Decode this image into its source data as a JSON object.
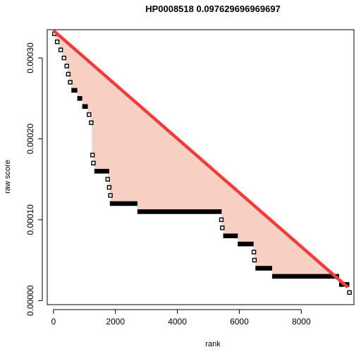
{
  "chart_data": {
    "type": "scatter",
    "title": "HP0008518 0.097629696969697",
    "xlabel": "rank",
    "ylabel": "raw score",
    "xlim": [
      -200,
      9700
    ],
    "ylim": [
      -5e-06,
      0.000335
    ],
    "x_ticks": [
      0,
      2000,
      4000,
      6000,
      8000
    ],
    "x_tick_labels": [
      "0",
      "2000",
      "4000",
      "6000",
      "8000"
    ],
    "y_ticks": [
      0.0,
      0.0001,
      0.0002,
      0.0003
    ],
    "y_tick_labels": [
      "0.00000",
      "0.00010",
      "0.00020",
      "0.00030"
    ],
    "grid": false,
    "colors": {
      "reference_line": "#f03c3c",
      "fill": "#f7cfc3",
      "points": "#000000"
    },
    "reference_line": {
      "x": [
        0,
        9500
      ],
      "y": [
        0.000334,
        1.65e-05
      ]
    },
    "steps": [
      {
        "x0": 0,
        "x1": 60,
        "y": 0.00033
      },
      {
        "x0": 60,
        "x1": 180,
        "y": 0.00032
      },
      {
        "x0": 180,
        "x1": 290,
        "y": 0.00031
      },
      {
        "x0": 290,
        "x1": 390,
        "y": 0.0003
      },
      {
        "x0": 390,
        "x1": 470,
        "y": 0.00029
      },
      {
        "x0": 440,
        "x1": 520,
        "y": 0.00028
      },
      {
        "x0": 500,
        "x1": 580,
        "y": 0.00027
      },
      {
        "x0": 580,
        "x1": 770,
        "y": 0.00026
      },
      {
        "x0": 770,
        "x1": 930,
        "y": 0.00025
      },
      {
        "x0": 930,
        "x1": 1110,
        "y": 0.00024
      },
      {
        "x0": 1110,
        "x1": 1190,
        "y": 0.00023
      },
      {
        "x0": 1200,
        "x1": 1240,
        "y": 0.00022
      },
      {
        "x0": 1240,
        "x1": 1280,
        "y": 0.00018
      },
      {
        "x0": 1260,
        "x1": 1320,
        "y": 0.00017
      },
      {
        "x0": 1320,
        "x1": 1800,
        "y": 0.00016
      },
      {
        "x0": 1720,
        "x1": 1780,
        "y": 0.00015
      },
      {
        "x0": 1780,
        "x1": 1820,
        "y": 0.00014
      },
      {
        "x0": 1820,
        "x1": 1860,
        "y": 0.00013
      },
      {
        "x0": 1820,
        "x1": 2710,
        "y": 0.00012
      },
      {
        "x0": 2710,
        "x1": 5430,
        "y": 0.00011
      },
      {
        "x0": 5400,
        "x1": 5440,
        "y": 0.0001
      },
      {
        "x0": 5420,
        "x1": 5480,
        "y": 9e-05
      },
      {
        "x0": 5480,
        "x1": 5950,
        "y": 8e-05
      },
      {
        "x0": 5950,
        "x1": 6460,
        "y": 7e-05
      },
      {
        "x0": 6440,
        "x1": 6500,
        "y": 6e-05
      },
      {
        "x0": 6460,
        "x1": 6520,
        "y": 5e-05
      },
      {
        "x0": 6520,
        "x1": 7060,
        "y": 4e-05
      },
      {
        "x0": 7060,
        "x1": 9220,
        "y": 3e-05
      },
      {
        "x0": 9220,
        "x1": 9550,
        "y": 2e-05
      },
      {
        "x0": 9530,
        "x1": 9580,
        "y": 1e-05
      }
    ]
  }
}
